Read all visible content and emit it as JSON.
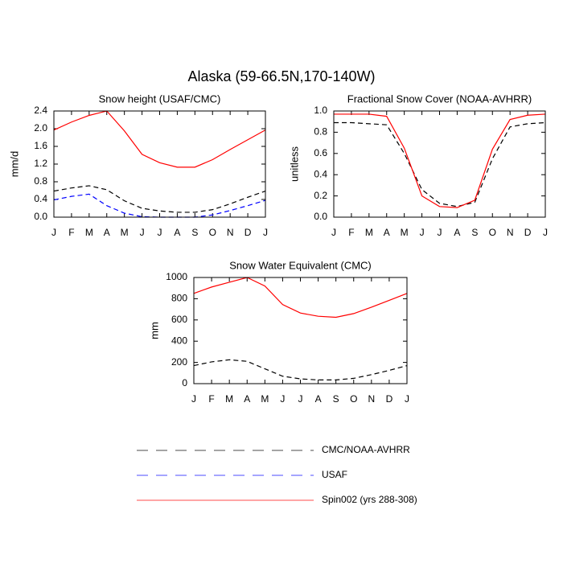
{
  "title": "Alaska (59-66.5N,170-140W)",
  "legend": [
    {
      "name": "CMC/NOAA-AVHRR",
      "color": "#000000",
      "dash": true
    },
    {
      "name": "USAF",
      "color": "#0000ff",
      "dash": true
    },
    {
      "name": "Spin002 (yrs 288-308)",
      "color": "#ff0000",
      "dash": false
    }
  ],
  "chart_data": [
    {
      "type": "line",
      "title": "Snow height (USAF/CMC)",
      "y_label": "mm/d",
      "categories": [
        "J",
        "F",
        "M",
        "A",
        "M",
        "J",
        "J",
        "A",
        "S",
        "O",
        "N",
        "D",
        "J"
      ],
      "ylim": [
        0,
        2.4
      ],
      "yticks": [
        {
          "value": 0,
          "label": "0.0"
        },
        {
          "value": 0.4,
          "label": "0.4"
        },
        {
          "value": 0.8,
          "label": "0.8"
        },
        {
          "value": 1.2,
          "label": "1.2"
        },
        {
          "value": 1.6,
          "label": "1.6"
        },
        {
          "value": 2,
          "label": "2.0"
        },
        {
          "value": 2.4,
          "label": "2.4"
        }
      ],
      "series": [
        {
          "color": "#000000",
          "dash": true,
          "values": [
            0.59,
            0.66,
            0.71,
            0.62,
            0.37,
            0.2,
            0.14,
            0.11,
            0.11,
            0.17,
            0.3,
            0.45,
            0.59
          ]
        },
        {
          "color": "#0000ff",
          "dash": true,
          "values": [
            0.39,
            0.47,
            0.52,
            0.26,
            0.09,
            0.01,
            0,
            0,
            0,
            0.05,
            0.15,
            0.26,
            0.38
          ]
        },
        {
          "color": "#ff0000",
          "dash": false,
          "values": [
            1.97,
            2.15,
            2.3,
            2.4,
            1.95,
            1.42,
            1.23,
            1.13,
            1.13,
            1.3,
            1.53,
            1.75,
            1.97
          ]
        }
      ]
    },
    {
      "type": "line",
      "title": "Fractional Snow Cover (NOAA-AVHRR)",
      "y_label": "unitless",
      "categories": [
        "J",
        "F",
        "M",
        "A",
        "M",
        "J",
        "J",
        "A",
        "S",
        "O",
        "N",
        "D",
        "J"
      ],
      "ylim": [
        0,
        1
      ],
      "yticks": [
        {
          "value": 0,
          "label": "0.0"
        },
        0.2,
        0.4,
        0.6,
        0.8,
        {
          "value": 1,
          "label": "1.0"
        }
      ],
      "series": [
        {
          "color": "#000000",
          "dash": true,
          "values": [
            0.89,
            0.89,
            0.88,
            0.87,
            0.6,
            0.26,
            0.13,
            0.1,
            0.14,
            0.55,
            0.85,
            0.88,
            0.89
          ]
        },
        {
          "color": "#ff0000",
          "dash": false,
          "values": [
            0.97,
            0.97,
            0.97,
            0.95,
            0.65,
            0.2,
            0.1,
            0.09,
            0.16,
            0.64,
            0.92,
            0.96,
            0.97
          ]
        }
      ]
    },
    {
      "type": "line",
      "title": "Snow Water Equivalent (CMC)",
      "y_label": "mm",
      "categories": [
        "J",
        "F",
        "M",
        "A",
        "M",
        "J",
        "J",
        "A",
        "S",
        "O",
        "N",
        "D",
        "J"
      ],
      "ylim": [
        0,
        1000
      ],
      "yticks": [
        0,
        200,
        400,
        600,
        800,
        1000
      ],
      "series": [
        {
          "color": "#000000",
          "dash": true,
          "values": [
            170,
            205,
            225,
            210,
            140,
            70,
            45,
            35,
            35,
            50,
            85,
            125,
            170
          ]
        },
        {
          "color": "#ff0000",
          "dash": false,
          "values": [
            850,
            910,
            955,
            1000,
            920,
            745,
            665,
            635,
            625,
            660,
            720,
            785,
            850
          ]
        }
      ]
    }
  ]
}
